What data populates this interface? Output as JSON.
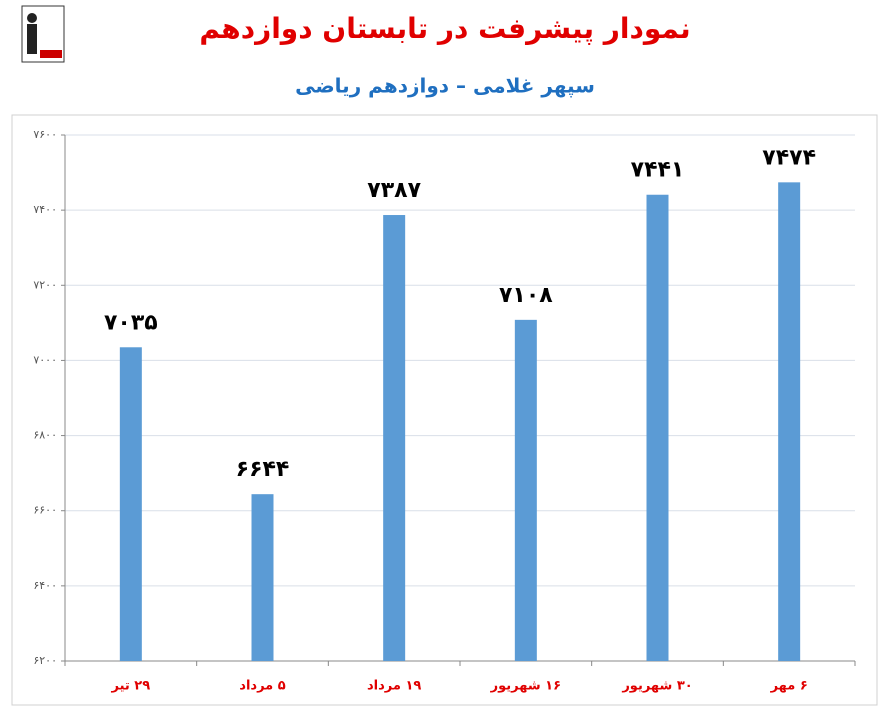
{
  "chart_data": {
    "type": "bar",
    "title": "نمودار پیشرفت در تابستان دوازدهم",
    "subtitle": "سپهر غلامی – دوازدهم ریاضی",
    "categories": [
      "۲۹ تیر",
      "۵ مرداد",
      "۱۹ مرداد",
      "۱۶ شهریور",
      "۳۰ شهریور",
      "۶ مهر"
    ],
    "values": [
      7035,
      6644,
      7387,
      7108,
      7441,
      7474
    ],
    "value_labels": [
      "۷۰۳۵",
      "۶۶۴۴",
      "۷۳۸۷",
      "۷۱۰۸",
      "۷۴۴۱",
      "۷۴۷۴"
    ],
    "color": "#5b9bd5",
    "ylim": [
      6200,
      7600
    ],
    "yticks": [
      {
        "value": 6200,
        "label": "۶۲۰۰"
      },
      {
        "value": 6400,
        "label": "۶۴۰۰"
      },
      {
        "value": 6600,
        "label": "۶۶۰۰"
      },
      {
        "value": 6800,
        "label": "۶۸۰۰"
      },
      {
        "value": 7000,
        "label": "۷۰۰۰"
      },
      {
        "value": 7200,
        "label": "۷۲۰۰"
      },
      {
        "value": 7400,
        "label": "۷۴۰۰"
      },
      {
        "value": 7600,
        "label": "۷۶۰۰"
      }
    ],
    "grid": true
  }
}
